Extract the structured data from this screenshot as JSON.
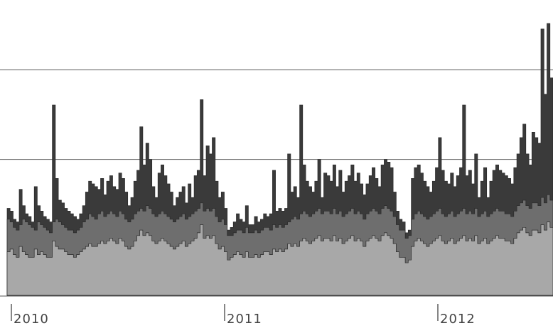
{
  "chart_data": {
    "type": "area",
    "title": "",
    "xlabel": "",
    "ylabel": "",
    "x_ticks": [
      "2010",
      "2011",
      "2012"
    ],
    "x_range": [
      "2010",
      "2012"
    ],
    "grid": true,
    "legend": "none",
    "series": [
      {
        "color": "#3a3a3a",
        "values": [
          32,
          31,
          28,
          27,
          39,
          33,
          30,
          29,
          27,
          40,
          33,
          31,
          29,
          28,
          27,
          70,
          43,
          35,
          34,
          32,
          31,
          30,
          29,
          28,
          30,
          33,
          38,
          42,
          41,
          40,
          39,
          43,
          37,
          42,
          44,
          40,
          39,
          45,
          43,
          38,
          33,
          36,
          42,
          46,
          62,
          48,
          56,
          50,
          40,
          36,
          45,
          48,
          44,
          41,
          38,
          33,
          36,
          38,
          40,
          34,
          41,
          36,
          44,
          46,
          72,
          44,
          55,
          52,
          58,
          42,
          36,
          38,
          32,
          24,
          25,
          27,
          30,
          28,
          27,
          33,
          26,
          26,
          29,
          27,
          28,
          30,
          29,
          30,
          46,
          31,
          32,
          31,
          32,
          52,
          38,
          40,
          36,
          70,
          48,
          42,
          40,
          38,
          42,
          50,
          36,
          45,
          44,
          42,
          48,
          40,
          46,
          38,
          42,
          44,
          48,
          42,
          45,
          41,
          37,
          41,
          44,
          47,
          43,
          40,
          48,
          50,
          49,
          47,
          38,
          31,
          28,
          27,
          23,
          24,
          43,
          47,
          48,
          45,
          42,
          40,
          38,
          42,
          47,
          58,
          46,
          42,
          41,
          45,
          40,
          44,
          47,
          70,
          44,
          46,
          41,
          52,
          36,
          42,
          47,
          36,
          42,
          46,
          48,
          46,
          45,
          44,
          43,
          41,
          47,
          52,
          58,
          63,
          52,
          48,
          60,
          58,
          56,
          98,
          74,
          100,
          80
        ]
      },
      {
        "color": "#6e6e6e",
        "values": [
          28,
          27,
          25,
          24,
          26,
          28,
          27,
          26,
          25,
          24,
          27,
          26,
          25,
          24,
          23,
          27,
          28,
          27,
          26,
          25,
          24,
          24,
          23,
          24,
          25,
          27,
          28,
          30,
          29,
          28,
          30,
          31,
          29,
          30,
          31,
          30,
          29,
          31,
          30,
          28,
          27,
          28,
          30,
          31,
          32,
          31,
          33,
          32,
          30,
          29,
          30,
          31,
          30,
          29,
          28,
          27,
          28,
          29,
          30,
          28,
          29,
          30,
          31,
          32,
          34,
          31,
          32,
          31,
          32,
          29,
          27,
          28,
          26,
          22,
          22,
          23,
          24,
          24,
          23,
          25,
          23,
          23,
          24,
          23,
          24,
          25,
          25,
          24,
          26,
          25,
          26,
          25,
          26,
          27,
          28,
          29,
          28,
          30,
          31,
          30,
          29,
          30,
          31,
          32,
          30,
          31,
          31,
          30,
          32,
          30,
          31,
          29,
          30,
          31,
          32,
          30,
          31,
          30,
          28,
          30,
          31,
          32,
          31,
          30,
          32,
          33,
          32,
          31,
          29,
          26,
          24,
          24,
          21,
          22,
          28,
          30,
          31,
          30,
          29,
          28,
          29,
          30,
          31,
          32,
          30,
          29,
          30,
          31,
          29,
          30,
          31,
          32,
          30,
          31,
          30,
          32,
          29,
          30,
          31,
          29,
          30,
          31,
          32,
          31,
          31,
          30,
          30,
          29,
          31,
          33,
          34,
          35,
          33,
          32,
          34,
          34,
          33,
          36,
          34,
          37,
          35
        ]
      },
      {
        "color": "#a8a8a8",
        "values": [
          16,
          17,
          15,
          14,
          18,
          16,
          15,
          14,
          14,
          17,
          15,
          16,
          15,
          14,
          14,
          20,
          18,
          17,
          17,
          16,
          15,
          15,
          14,
          15,
          16,
          17,
          18,
          19,
          18,
          18,
          19,
          20,
          19,
          20,
          21,
          20,
          19,
          21,
          20,
          18,
          17,
          18,
          20,
          22,
          24,
          22,
          23,
          22,
          20,
          19,
          20,
          21,
          20,
          19,
          18,
          17,
          18,
          19,
          20,
          18,
          19,
          20,
          21,
          23,
          26,
          21,
          22,
          21,
          22,
          19,
          17,
          18,
          16,
          13,
          14,
          15,
          16,
          15,
          14,
          16,
          14,
          14,
          15,
          14,
          15,
          16,
          16,
          15,
          17,
          16,
          17,
          16,
          17,
          19,
          18,
          19,
          18,
          20,
          21,
          20,
          19,
          20,
          21,
          22,
          20,
          21,
          21,
          20,
          22,
          20,
          21,
          19,
          20,
          21,
          22,
          20,
          21,
          20,
          18,
          20,
          21,
          22,
          21,
          20,
          22,
          23,
          22,
          21,
          19,
          16,
          14,
          14,
          12,
          13,
          18,
          20,
          21,
          20,
          19,
          18,
          19,
          20,
          21,
          22,
          20,
          19,
          20,
          21,
          19,
          20,
          21,
          22,
          20,
          21,
          20,
          22,
          19,
          20,
          21,
          19,
          20,
          21,
          22,
          21,
          21,
          20,
          20,
          19,
          21,
          23,
          24,
          25,
          23,
          22,
          24,
          24,
          23,
          26,
          24,
          27,
          25
        ]
      }
    ]
  }
}
